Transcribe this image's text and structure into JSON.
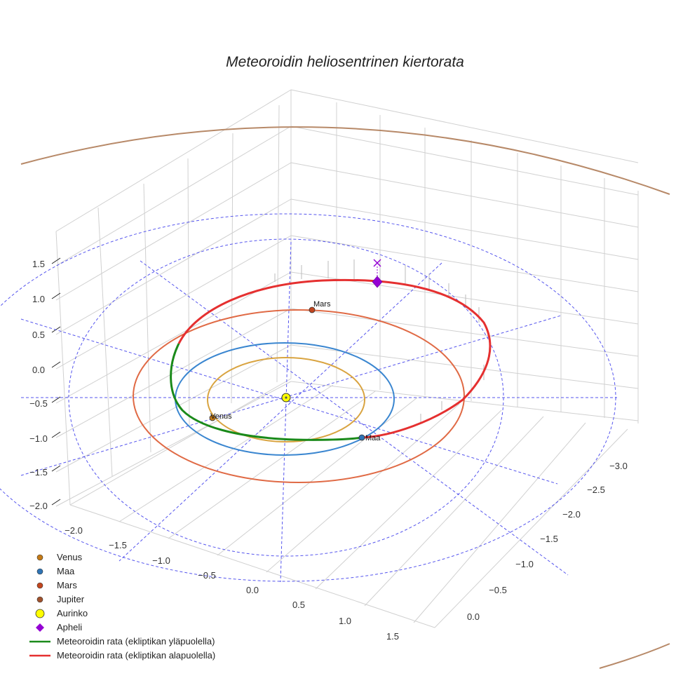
{
  "chart_data": {
    "type": "scatter3d",
    "title": "Meteoroidin heliosentrinen kiertorata",
    "z_ticks": [
      "1.5",
      "1.0",
      "0.5",
      "0.0",
      "−0.5",
      "−1.0",
      "−1.5",
      "−2.0"
    ],
    "x_ticks": [
      "−2.0",
      "−1.5",
      "−1.0",
      "−0.5",
      "0.0",
      "0.5",
      "1.0",
      "1.5"
    ],
    "y_ticks": [
      "−3.0",
      "−2.5",
      "−2.0",
      "−1.5",
      "−1.0",
      "−0.5",
      "0.0"
    ],
    "planets": [
      {
        "name": "Venus",
        "label": "Venus",
        "color": "#c47a17",
        "orbit_color": "#d9a441"
      },
      {
        "name": "Maa",
        "label": "Maa",
        "color": "#2f74b5",
        "orbit_color": "#3a86d0"
      },
      {
        "name": "Mars",
        "label": "Mars",
        "color": "#c2461f",
        "orbit_color": "#e06a45"
      },
      {
        "name": "Jupiter",
        "label": "",
        "color": "#a0522d",
        "orbit_color": "#b78968"
      }
    ],
    "sun": {
      "name": "Aurinko",
      "color": "#ffff00"
    },
    "aphelion": {
      "name": "Apheli",
      "color": "#9400d3"
    },
    "meteoroid_above": {
      "name": "Meteoroidin rata (ekliptikan yläpuolella)",
      "color": "#1a8a1a"
    },
    "meteoroid_below": {
      "name": "Meteoroidin rata (ekliptikan alapuolella)",
      "color": "#e53030"
    },
    "reference_grid_color": "#5555ee",
    "legend": [
      {
        "label": "Venus",
        "marker": "circle",
        "color": "#c47a17"
      },
      {
        "label": "Maa",
        "marker": "circle",
        "color": "#2f74b5"
      },
      {
        "label": "Mars",
        "marker": "circle",
        "color": "#c2461f"
      },
      {
        "label": "Jupiter",
        "marker": "circle",
        "color": "#a0522d"
      },
      {
        "label": "Aurinko",
        "marker": "sun",
        "color": "#ffff00"
      },
      {
        "label": "Apheli",
        "marker": "diamond",
        "color": "#9400d3"
      },
      {
        "label": "Meteoroidin rata (ekliptikan yläpuolella)",
        "marker": "line",
        "color": "#1a8a1a"
      },
      {
        "label": "Meteoroidin rata (ekliptikan alapuolella)",
        "marker": "line",
        "color": "#e53030"
      }
    ]
  }
}
